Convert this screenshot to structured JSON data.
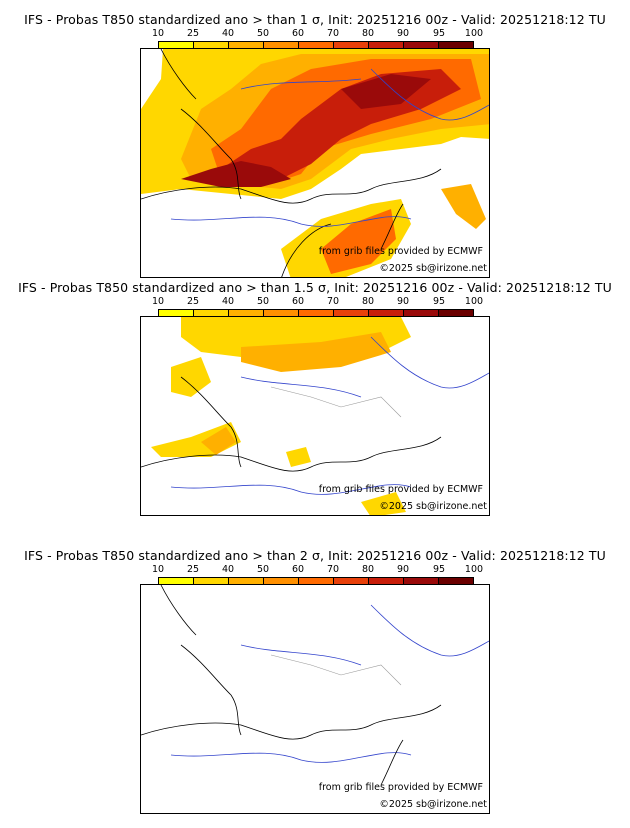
{
  "colorbar": {
    "ticks": [
      "10",
      "25",
      "40",
      "50",
      "60",
      "70",
      "80",
      "90",
      "95",
      "100"
    ],
    "colors": [
      "#ffff00",
      "#ffd700",
      "#ffb000",
      "#ff9000",
      "#ff6a00",
      "#e8400a",
      "#c81e0a",
      "#9a0a0a",
      "#6b0000"
    ]
  },
  "panels": [
    {
      "title": "IFS - Probas T850  standardized ano > than 1 σ, Init: 20251216 00z - Valid: 20251218:12 TU",
      "credit_source": "from grib files provided by ECMWF",
      "credit_copyright": "©2025 sb@irizone.net"
    },
    {
      "title": "IFS - Probas T850  standardized ano > than 1.5 σ, Init: 20251216 00z - Valid: 20251218:12 TU",
      "credit_source": "from grib files provided by ECMWF",
      "credit_copyright": "©2025 sb@irizone.net"
    },
    {
      "title": "IFS - Probas T850  standardized ano > than 2 σ, Init: 20251216 00z - Valid: 20251218:12 TU",
      "credit_source": "from grib files provided by ECMWF",
      "credit_copyright": "©2025 sb@irizone.net"
    }
  ]
}
